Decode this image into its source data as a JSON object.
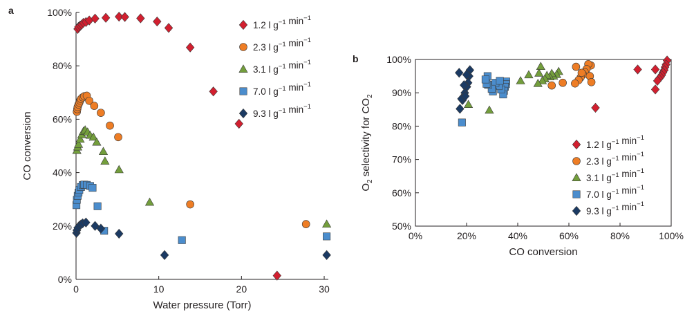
{
  "chart_data": [
    {
      "panel": "a",
      "type": "scatter",
      "xlabel": "Water pressure (Torr)",
      "ylabel": "CO conversion",
      "xlim": [
        0,
        30.5
      ],
      "ylim": [
        0,
        100
      ],
      "xticks": [
        "0",
        "10",
        "20",
        "30"
      ],
      "yticks": [
        "0%",
        "20%",
        "40%",
        "60%",
        "80%",
        "100%"
      ],
      "legend_position": "top-right",
      "series": [
        {
          "name": "1.2 l g−1 min−1",
          "marker": "diamond",
          "color": "#d21f2f",
          "points": [
            [
              0.2,
              93.8
            ],
            [
              0.3,
              94.6
            ],
            [
              0.5,
              95.1
            ],
            [
              0.7,
              95.5
            ],
            [
              0.9,
              96.1
            ],
            [
              1.2,
              96.4
            ],
            [
              1.6,
              97.0
            ],
            [
              2.3,
              97.7
            ],
            [
              3.6,
              98.0
            ],
            [
              5.2,
              98.4
            ],
            [
              5.9,
              98.3
            ],
            [
              7.8,
              97.8
            ],
            [
              9.8,
              96.6
            ],
            [
              11.2,
              94.2
            ],
            [
              13.8,
              86.9
            ],
            [
              16.6,
              70.4
            ],
            [
              19.7,
              58.3
            ],
            [
              24.3,
              1.4
            ]
          ]
        },
        {
          "name": "2.3 l g−1 min−1",
          "marker": "circle",
          "color": "#ee7d25",
          "points": [
            [
              0.1,
              62.8
            ],
            [
              0.15,
              63.8
            ],
            [
              0.2,
              64.6
            ],
            [
              0.3,
              65.5
            ],
            [
              0.4,
              66.2
            ],
            [
              0.5,
              67.0
            ],
            [
              0.6,
              67.6
            ],
            [
              0.8,
              68.2
            ],
            [
              1.0,
              68.6
            ],
            [
              1.3,
              68.8
            ],
            [
              1.6,
              66.9
            ],
            [
              2.2,
              65.0
            ],
            [
              3.0,
              62.4
            ],
            [
              4.1,
              57.6
            ],
            [
              5.1,
              53.3
            ],
            [
              13.8,
              28.1
            ],
            [
              27.8,
              20.7
            ]
          ]
        },
        {
          "name": "3.1 l g−1 min−1",
          "marker": "triangle",
          "color": "#739e3c",
          "points": [
            [
              0.1,
              48.3
            ],
            [
              0.2,
              49.6
            ],
            [
              0.3,
              50.6
            ],
            [
              0.5,
              52.5
            ],
            [
              0.7,
              54.2
            ],
            [
              0.9,
              55.5
            ],
            [
              1.1,
              56.0
            ],
            [
              1.4,
              55.2
            ],
            [
              1.7,
              54.0
            ],
            [
              2.1,
              53.3
            ],
            [
              2.5,
              51.4
            ],
            [
              3.3,
              47.9
            ],
            [
              3.5,
              44.3
            ],
            [
              5.2,
              41.1
            ],
            [
              8.9,
              28.9
            ],
            [
              30.3,
              20.7
            ]
          ]
        },
        {
          "name": "7.0 l g−1 min−1",
          "marker": "square",
          "color": "#4b8dcd",
          "points": [
            [
              0.05,
              27.8
            ],
            [
              0.1,
              29.8
            ],
            [
              0.2,
              31.3
            ],
            [
              0.3,
              32.5
            ],
            [
              0.4,
              33.5
            ],
            [
              0.6,
              34.6
            ],
            [
              0.8,
              35.3
            ],
            [
              1.0,
              35.5
            ],
            [
              1.3,
              35.4
            ],
            [
              1.7,
              35.0
            ],
            [
              2.0,
              34.3
            ],
            [
              2.6,
              27.4
            ],
            [
              3.4,
              18.2
            ],
            [
              12.8,
              14.7
            ],
            [
              30.3,
              16.1
            ]
          ]
        },
        {
          "name": "9.3 l g−1 min−1",
          "marker": "diamond",
          "color": "#1b3a63",
          "points": [
            [
              0.05,
              17.4
            ],
            [
              0.1,
              18.4
            ],
            [
              0.2,
              19.3
            ],
            [
              0.4,
              20.1
            ],
            [
              0.6,
              20.6
            ],
            [
              0.8,
              21.0
            ],
            [
              1.2,
              21.3
            ],
            [
              2.3,
              20.0
            ],
            [
              3.0,
              19.0
            ],
            [
              5.2,
              17.1
            ],
            [
              10.7,
              9.1
            ],
            [
              30.3,
              9.1
            ]
          ]
        }
      ]
    },
    {
      "panel": "b",
      "type": "scatter",
      "xlabel": "CO conversion",
      "ylabel": "O₂ selectivity for CO₂",
      "ylabel_parts": [
        "O",
        "2",
        " selectivity for CO",
        "2"
      ],
      "xlim": [
        0,
        100
      ],
      "ylim": [
        50,
        100
      ],
      "xticks": [
        "0%",
        "20%",
        "40%",
        "60%",
        "80%",
        "100%"
      ],
      "yticks": [
        "50%",
        "60%",
        "70%",
        "80%",
        "90%",
        "100%"
      ],
      "legend_position": "bottom-right",
      "series": [
        {
          "name": "1.2 l g−1 min−1",
          "marker": "diamond",
          "color": "#d21f2f",
          "points": [
            [
              98.4,
              99.7
            ],
            [
              98.0,
              98.5
            ],
            [
              97.6,
              97.7
            ],
            [
              97.3,
              96.8
            ],
            [
              96.8,
              96.1
            ],
            [
              96.3,
              95.3
            ],
            [
              95.8,
              94.7
            ],
            [
              95.2,
              94.2
            ],
            [
              94.6,
              93.6
            ],
            [
              93.8,
              91.0
            ],
            [
              93.8,
              97.0
            ],
            [
              86.9,
              97.0
            ],
            [
              70.4,
              85.5
            ]
          ]
        },
        {
          "name": "2.3 l g−1 min−1",
          "marker": "circle",
          "color": "#ee7d25",
          "points": [
            [
              68.6,
              98.2
            ],
            [
              67.6,
              98.6
            ],
            [
              66.9,
              97.1
            ],
            [
              66.2,
              96.2
            ],
            [
              65.5,
              95.5
            ],
            [
              64.6,
              94.6
            ],
            [
              63.8,
              93.8
            ],
            [
              62.8,
              97.8
            ],
            [
              62.4,
              92.8
            ],
            [
              57.6,
              93.0
            ],
            [
              53.3,
              92.2
            ],
            [
              68.2,
              95.0
            ],
            [
              65.0,
              96.0
            ],
            [
              68.8,
              93.2
            ]
          ]
        },
        {
          "name": "3.1 l g−1 min−1",
          "marker": "triangle",
          "color": "#739e3c",
          "points": [
            [
              56.0,
              96.4
            ],
            [
              55.2,
              95.5
            ],
            [
              54.0,
              95.0
            ],
            [
              53.3,
              95.8
            ],
            [
              52.5,
              94.8
            ],
            [
              51.4,
              95.2
            ],
            [
              50.6,
              94.2
            ],
            [
              49.6,
              93.6
            ],
            [
              49.0,
              97.9
            ],
            [
              48.3,
              95.9
            ],
            [
              47.9,
              92.8
            ],
            [
              44.3,
              95.4
            ],
            [
              41.1,
              93.6
            ],
            [
              28.9,
              84.8
            ],
            [
              20.7,
              86.5
            ]
          ]
        },
        {
          "name": "7.0 l g−1 min−1",
          "marker": "square",
          "color": "#4b8dcd",
          "points": [
            [
              35.5,
              93.4
            ],
            [
              35.4,
              92.6
            ],
            [
              35.0,
              91.8
            ],
            [
              34.6,
              90.6
            ],
            [
              34.3,
              89.5
            ],
            [
              33.5,
              91.0
            ],
            [
              32.5,
              92.0
            ],
            [
              31.3,
              93.0
            ],
            [
              30.3,
              90.4
            ],
            [
              29.8,
              91.2
            ],
            [
              28.4,
              92.4
            ],
            [
              28.2,
              95.0
            ],
            [
              27.8,
              92.7
            ],
            [
              27.4,
              94.0
            ],
            [
              33.0,
              93.6
            ],
            [
              18.2,
              81.1
            ]
          ]
        },
        {
          "name": "9.3 l g−1 min−1",
          "marker": "diamond",
          "color": "#1b3a63",
          "points": [
            [
              21.3,
              96.8
            ],
            [
              21.0,
              95.0
            ],
            [
              20.6,
              93.0
            ],
            [
              20.1,
              91.8
            ],
            [
              19.3,
              90.0
            ],
            [
              18.4,
              87.8
            ],
            [
              17.4,
              85.2
            ],
            [
              17.1,
              96.0
            ],
            [
              19.0,
              92.3
            ],
            [
              20.0,
              95.4
            ],
            [
              18.0,
              88.2
            ],
            [
              19.5,
              89.0
            ]
          ]
        }
      ]
    }
  ]
}
